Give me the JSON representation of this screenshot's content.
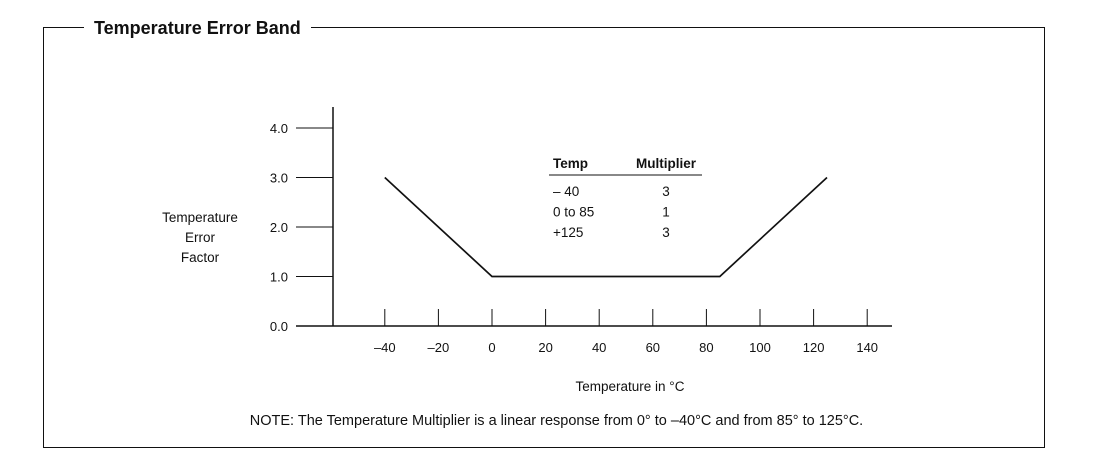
{
  "title": "Temperature Error Band",
  "note": "NOTE: The Temperature Multiplier is a linear response from 0° to –40°C and from 85° to 125°C.",
  "chart_data": {
    "type": "line",
    "title": "Temperature Error Band",
    "xlabel": "Temperature in °C",
    "ylabel_lines": [
      "Temperature",
      "Error",
      "Factor"
    ],
    "x_ticks": [
      -40,
      -20,
      0,
      20,
      40,
      60,
      80,
      100,
      120,
      140
    ],
    "x_tick_labels": [
      "–40",
      "–20",
      "0",
      "20",
      "40",
      "60",
      "80",
      "100",
      "120",
      "140"
    ],
    "y_ticks": [
      0,
      1,
      2,
      3,
      4
    ],
    "y_tick_labels": [
      "0.0",
      "1.0",
      "2.0",
      "3.0",
      "4.0"
    ],
    "xlim": [
      -58,
      147
    ],
    "ylim": [
      0,
      4.4
    ],
    "grid": false,
    "series": [
      {
        "x": [
          -40,
          0,
          85,
          125
        ],
        "y": [
          3,
          1,
          1,
          3
        ]
      }
    ]
  },
  "inset_table": {
    "headers": [
      "Temp",
      "Multiplier"
    ],
    "rows": [
      [
        "– 40",
        "3"
      ],
      [
        "0 to 85",
        "1"
      ],
      [
        "+125",
        "3"
      ]
    ]
  }
}
